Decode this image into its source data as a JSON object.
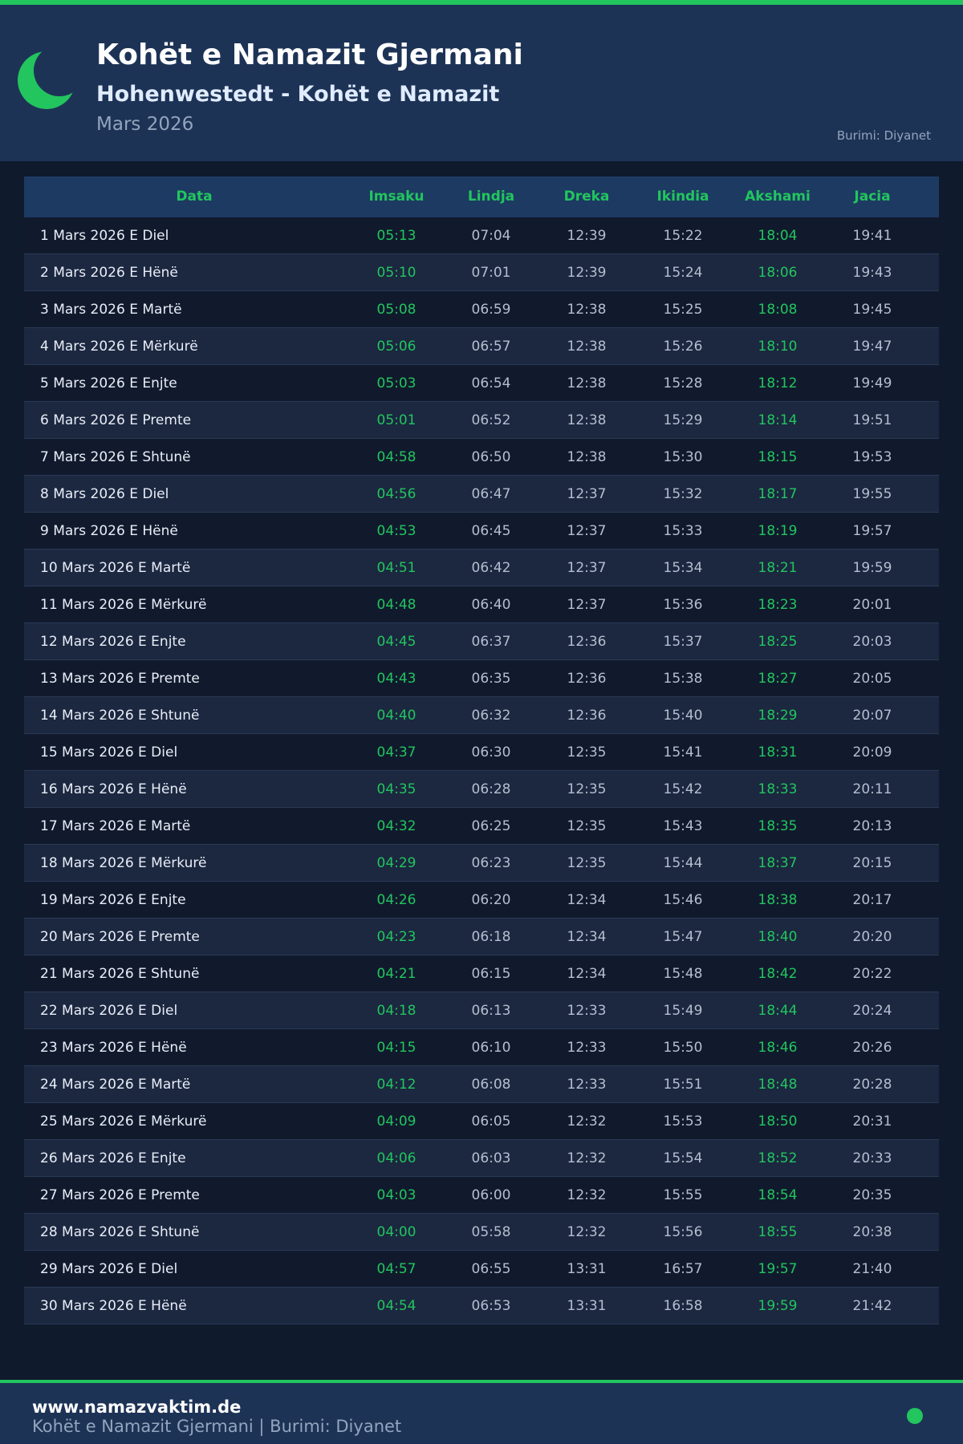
{
  "header": {
    "title": "Kohët e Namazit Gjermani",
    "subtitle": "Hohenwestedt - Kohët e Namazit",
    "month": "Mars 2026",
    "source": "Burimi: Diyanet"
  },
  "table": {
    "columns": [
      "Data",
      "Imsaku",
      "Lindja",
      "Dreka",
      "Ikindia",
      "Akshami",
      "Jacia"
    ],
    "rows": [
      [
        "1 Mars 2026 E Diel",
        "05:13",
        "07:04",
        "12:39",
        "15:22",
        "18:04",
        "19:41"
      ],
      [
        "2 Mars 2026 E Hënë",
        "05:10",
        "07:01",
        "12:39",
        "15:24",
        "18:06",
        "19:43"
      ],
      [
        "3 Mars 2026 E Martë",
        "05:08",
        "06:59",
        "12:38",
        "15:25",
        "18:08",
        "19:45"
      ],
      [
        "4 Mars 2026 E Mërkurë",
        "05:06",
        "06:57",
        "12:38",
        "15:26",
        "18:10",
        "19:47"
      ],
      [
        "5 Mars 2026 E Enjte",
        "05:03",
        "06:54",
        "12:38",
        "15:28",
        "18:12",
        "19:49"
      ],
      [
        "6 Mars 2026 E Premte",
        "05:01",
        "06:52",
        "12:38",
        "15:29",
        "18:14",
        "19:51"
      ],
      [
        "7 Mars 2026 E Shtunë",
        "04:58",
        "06:50",
        "12:38",
        "15:30",
        "18:15",
        "19:53"
      ],
      [
        "8 Mars 2026 E Diel",
        "04:56",
        "06:47",
        "12:37",
        "15:32",
        "18:17",
        "19:55"
      ],
      [
        "9 Mars 2026 E Hënë",
        "04:53",
        "06:45",
        "12:37",
        "15:33",
        "18:19",
        "19:57"
      ],
      [
        "10 Mars 2026 E Martë",
        "04:51",
        "06:42",
        "12:37",
        "15:34",
        "18:21",
        "19:59"
      ],
      [
        "11 Mars 2026 E Mërkurë",
        "04:48",
        "06:40",
        "12:37",
        "15:36",
        "18:23",
        "20:01"
      ],
      [
        "12 Mars 2026 E Enjte",
        "04:45",
        "06:37",
        "12:36",
        "15:37",
        "18:25",
        "20:03"
      ],
      [
        "13 Mars 2026 E Premte",
        "04:43",
        "06:35",
        "12:36",
        "15:38",
        "18:27",
        "20:05"
      ],
      [
        "14 Mars 2026 E Shtunë",
        "04:40",
        "06:32",
        "12:36",
        "15:40",
        "18:29",
        "20:07"
      ],
      [
        "15 Mars 2026 E Diel",
        "04:37",
        "06:30",
        "12:35",
        "15:41",
        "18:31",
        "20:09"
      ],
      [
        "16 Mars 2026 E Hënë",
        "04:35",
        "06:28",
        "12:35",
        "15:42",
        "18:33",
        "20:11"
      ],
      [
        "17 Mars 2026 E Martë",
        "04:32",
        "06:25",
        "12:35",
        "15:43",
        "18:35",
        "20:13"
      ],
      [
        "18 Mars 2026 E Mërkurë",
        "04:29",
        "06:23",
        "12:35",
        "15:44",
        "18:37",
        "20:15"
      ],
      [
        "19 Mars 2026 E Enjte",
        "04:26",
        "06:20",
        "12:34",
        "15:46",
        "18:38",
        "20:17"
      ],
      [
        "20 Mars 2026 E Premte",
        "04:23",
        "06:18",
        "12:34",
        "15:47",
        "18:40",
        "20:20"
      ],
      [
        "21 Mars 2026 E Shtunë",
        "04:21",
        "06:15",
        "12:34",
        "15:48",
        "18:42",
        "20:22"
      ],
      [
        "22 Mars 2026 E Diel",
        "04:18",
        "06:13",
        "12:33",
        "15:49",
        "18:44",
        "20:24"
      ],
      [
        "23 Mars 2026 E Hënë",
        "04:15",
        "06:10",
        "12:33",
        "15:50",
        "18:46",
        "20:26"
      ],
      [
        "24 Mars 2026 E Martë",
        "04:12",
        "06:08",
        "12:33",
        "15:51",
        "18:48",
        "20:28"
      ],
      [
        "25 Mars 2026 E Mërkurë",
        "04:09",
        "06:05",
        "12:32",
        "15:53",
        "18:50",
        "20:31"
      ],
      [
        "26 Mars 2026 E Enjte",
        "04:06",
        "06:03",
        "12:32",
        "15:54",
        "18:52",
        "20:33"
      ],
      [
        "27 Mars 2026 E Premte",
        "04:03",
        "06:00",
        "12:32",
        "15:55",
        "18:54",
        "20:35"
      ],
      [
        "28 Mars 2026 E Shtunë",
        "04:00",
        "05:58",
        "12:32",
        "15:56",
        "18:55",
        "20:38"
      ],
      [
        "29 Mars 2026 E Diel",
        "04:57",
        "06:55",
        "13:31",
        "16:57",
        "19:57",
        "21:40"
      ],
      [
        "30 Mars 2026 E Hënë",
        "04:54",
        "06:53",
        "13:31",
        "16:58",
        "19:59",
        "21:42"
      ]
    ]
  },
  "footer": {
    "site": "www.namazvaktim.de",
    "text": "Kohët e Namazit Gjermani | Burimi: Diyanet"
  }
}
